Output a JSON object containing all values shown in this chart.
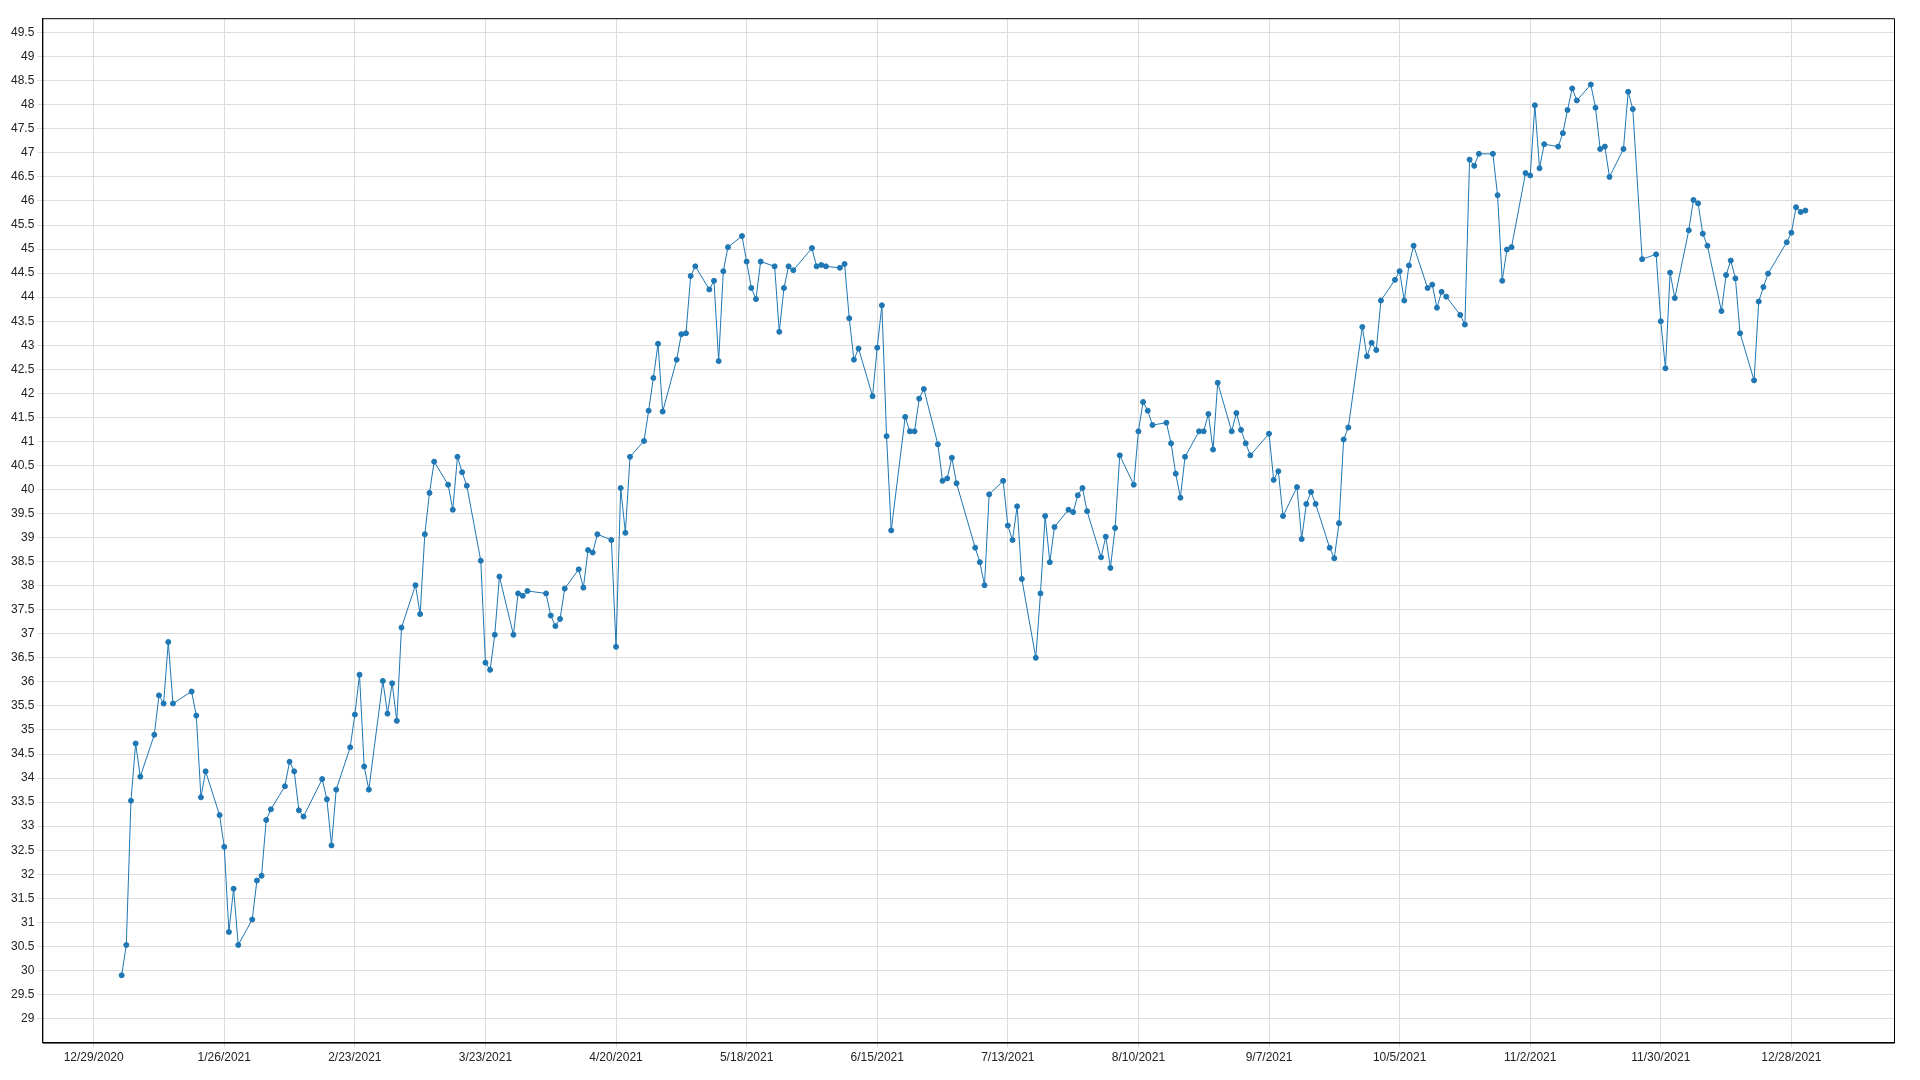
{
  "chart_data": {
    "type": "line",
    "xlim": [
      "2020-12-18",
      "2022-01-19"
    ],
    "ylim": [
      28.5,
      49.8
    ],
    "xticks": [
      {
        "value": "2020-12-29",
        "label": "12/29/2020"
      },
      {
        "value": "2021-01-26",
        "label": "1/26/2021"
      },
      {
        "value": "2021-02-23",
        "label": "2/23/2021"
      },
      {
        "value": "2021-03-23",
        "label": "3/23/2021"
      },
      {
        "value": "2021-04-20",
        "label": "4/20/2021"
      },
      {
        "value": "2021-05-18",
        "label": "5/18/2021"
      },
      {
        "value": "2021-06-15",
        "label": "6/15/2021"
      },
      {
        "value": "2021-07-13",
        "label": "7/13/2021"
      },
      {
        "value": "2021-08-10",
        "label": "8/10/2021"
      },
      {
        "value": "2021-09-07",
        "label": "9/7/2021"
      },
      {
        "value": "2021-10-05",
        "label": "10/5/2021"
      },
      {
        "value": "2021-11-02",
        "label": "11/2/2021"
      },
      {
        "value": "2021-11-30",
        "label": "11/30/2021"
      },
      {
        "value": "2021-12-28",
        "label": "12/28/2021"
      }
    ],
    "yticks": [
      29,
      29.5,
      30,
      30.5,
      31,
      31.5,
      32,
      32.5,
      33,
      33.5,
      34,
      34.5,
      35,
      35.5,
      36,
      36.5,
      37,
      37.5,
      38,
      38.5,
      39,
      39.5,
      40,
      40.5,
      41,
      41.5,
      42,
      42.5,
      43,
      43.5,
      44,
      44.5,
      45,
      45.5,
      46,
      46.5,
      47,
      47.5,
      48,
      48.5,
      49,
      49.5
    ],
    "grid": true,
    "legend": false,
    "marker": "circle",
    "line_style": "solid",
    "series": [
      {
        "color": "#1f77b4",
        "x": [
          "2021-01-04",
          "2021-01-05",
          "2021-01-06",
          "2021-01-07",
          "2021-01-08",
          "2021-01-11",
          "2021-01-12",
          "2021-01-13",
          "2021-01-14",
          "2021-01-15",
          "2021-01-19",
          "2021-01-20",
          "2021-01-21",
          "2021-01-22",
          "2021-01-25",
          "2021-01-26",
          "2021-01-27",
          "2021-01-28",
          "2021-01-29",
          "2021-02-01",
          "2021-02-02",
          "2021-02-03",
          "2021-02-04",
          "2021-02-05",
          "2021-02-08",
          "2021-02-09",
          "2021-02-10",
          "2021-02-11",
          "2021-02-12",
          "2021-02-16",
          "2021-02-17",
          "2021-02-18",
          "2021-02-19",
          "2021-02-22",
          "2021-02-23",
          "2021-02-24",
          "2021-02-25",
          "2021-02-26",
          "2021-03-01",
          "2021-03-02",
          "2021-03-03",
          "2021-03-04",
          "2021-03-05",
          "2021-03-08",
          "2021-03-09",
          "2021-03-10",
          "2021-03-11",
          "2021-03-12",
          "2021-03-15",
          "2021-03-16",
          "2021-03-17",
          "2021-03-18",
          "2021-03-19",
          "2021-03-22",
          "2021-03-23",
          "2021-03-24",
          "2021-03-25",
          "2021-03-26",
          "2021-03-29",
          "2021-03-30",
          "2021-03-31",
          "2021-04-01",
          "2021-04-05",
          "2021-04-06",
          "2021-04-07",
          "2021-04-08",
          "2021-04-09",
          "2021-04-12",
          "2021-04-13",
          "2021-04-14",
          "2021-04-15",
          "2021-04-16",
          "2021-04-19",
          "2021-04-20",
          "2021-04-21",
          "2021-04-22",
          "2021-04-23",
          "2021-04-26",
          "2021-04-27",
          "2021-04-28",
          "2021-04-29",
          "2021-04-30",
          "2021-05-03",
          "2021-05-04",
          "2021-05-05",
          "2021-05-06",
          "2021-05-07",
          "2021-05-10",
          "2021-05-11",
          "2021-05-12",
          "2021-05-13",
          "2021-05-14",
          "2021-05-17",
          "2021-05-18",
          "2021-05-19",
          "2021-05-20",
          "2021-05-21",
          "2021-05-24",
          "2021-05-25",
          "2021-05-26",
          "2021-05-27",
          "2021-05-28",
          "2021-06-01",
          "2021-06-02",
          "2021-06-03",
          "2021-06-04",
          "2021-06-07",
          "2021-06-08",
          "2021-06-09",
          "2021-06-10",
          "2021-06-11",
          "2021-06-14",
          "2021-06-15",
          "2021-06-16",
          "2021-06-17",
          "2021-06-18",
          "2021-06-21",
          "2021-06-22",
          "2021-06-23",
          "2021-06-24",
          "2021-06-25",
          "2021-06-28",
          "2021-06-29",
          "2021-06-30",
          "2021-07-01",
          "2021-07-02",
          "2021-07-06",
          "2021-07-07",
          "2021-07-08",
          "2021-07-09",
          "2021-07-12",
          "2021-07-13",
          "2021-07-14",
          "2021-07-15",
          "2021-07-16",
          "2021-07-19",
          "2021-07-20",
          "2021-07-21",
          "2021-07-22",
          "2021-07-23",
          "2021-07-26",
          "2021-07-27",
          "2021-07-28",
          "2021-07-29",
          "2021-07-30",
          "2021-08-02",
          "2021-08-03",
          "2021-08-04",
          "2021-08-05",
          "2021-08-06",
          "2021-08-09",
          "2021-08-10",
          "2021-08-11",
          "2021-08-12",
          "2021-08-13",
          "2021-08-16",
          "2021-08-17",
          "2021-08-18",
          "2021-08-19",
          "2021-08-20",
          "2021-08-23",
          "2021-08-24",
          "2021-08-25",
          "2021-08-26",
          "2021-08-27",
          "2021-08-30",
          "2021-08-31",
          "2021-09-01",
          "2021-09-02",
          "2021-09-03",
          "2021-09-07",
          "2021-09-08",
          "2021-09-09",
          "2021-09-10",
          "2021-09-13",
          "2021-09-14",
          "2021-09-15",
          "2021-09-16",
          "2021-09-17",
          "2021-09-20",
          "2021-09-21",
          "2021-09-22",
          "2021-09-23",
          "2021-09-24",
          "2021-09-27",
          "2021-09-28",
          "2021-09-29",
          "2021-09-30",
          "2021-10-01",
          "2021-10-04",
          "2021-10-05",
          "2021-10-06",
          "2021-10-07",
          "2021-10-08",
          "2021-10-11",
          "2021-10-12",
          "2021-10-13",
          "2021-10-14",
          "2021-10-15",
          "2021-10-18",
          "2021-10-19",
          "2021-10-20",
          "2021-10-21",
          "2021-10-22",
          "2021-10-25",
          "2021-10-26",
          "2021-10-27",
          "2021-10-28",
          "2021-10-29",
          "2021-11-01",
          "2021-11-02",
          "2021-11-03",
          "2021-11-04",
          "2021-11-05",
          "2021-11-08",
          "2021-11-09",
          "2021-11-10",
          "2021-11-11",
          "2021-11-12",
          "2021-11-15",
          "2021-11-16",
          "2021-11-17",
          "2021-11-18",
          "2021-11-19",
          "2021-11-22",
          "2021-11-23",
          "2021-11-24",
          "2021-11-26",
          "2021-11-29",
          "2021-11-30",
          "2021-12-01",
          "2021-12-02",
          "2021-12-03",
          "2021-12-06",
          "2021-12-07",
          "2021-12-08",
          "2021-12-09",
          "2021-12-10",
          "2021-12-13",
          "2021-12-14",
          "2021-12-15",
          "2021-12-16",
          "2021-12-17",
          "2021-12-20",
          "2021-12-21",
          "2021-12-22",
          "2021-12-23",
          "2021-12-27",
          "2021-12-28",
          "2021-12-29",
          "2021-12-30",
          "2021-12-31"
        ],
        "values": [
          29.9,
          30.53,
          33.53,
          34.72,
          34.03,
          34.9,
          35.72,
          35.55,
          36.83,
          35.55,
          35.8,
          35.3,
          33.6,
          34.14,
          33.23,
          32.57,
          30.8,
          31.7,
          30.53,
          31.06,
          31.87,
          31.97,
          33.13,
          33.35,
          33.83,
          34.34,
          34.14,
          33.33,
          33.2,
          33.98,
          33.56,
          32.6,
          33.76,
          34.64,
          35.32,
          36.15,
          34.24,
          33.76,
          36.02,
          35.34,
          35.97,
          35.19,
          37.13,
          38.01,
          37.41,
          39.07,
          39.93,
          40.58,
          40.1,
          39.58,
          40.68,
          40.36,
          40.08,
          38.52,
          36.4,
          36.25,
          36.98,
          38.19,
          36.98,
          37.84,
          37.79,
          37.89,
          37.84,
          37.38,
          37.16,
          37.31,
          37.94,
          38.34,
          37.96,
          38.74,
          38.69,
          39.07,
          38.95,
          36.73,
          40.03,
          39.1,
          40.68,
          41.01,
          41.64,
          42.32,
          43.03,
          41.62,
          42.7,
          43.23,
          43.25,
          44.44,
          44.64,
          44.16,
          44.34,
          42.67,
          44.54,
          45.04,
          45.27,
          44.74,
          44.19,
          43.96,
          44.74,
          44.64,
          43.28,
          44.19,
          44.64,
          44.56,
          45.02,
          44.64,
          44.67,
          44.64,
          44.61,
          44.69,
          43.56,
          42.7,
          42.93,
          41.94,
          42.95,
          43.83,
          41.11,
          39.15,
          41.51,
          41.21,
          41.21,
          41.89,
          42.09,
          40.94,
          40.18,
          40.23,
          40.66,
          40.13,
          38.79,
          38.49,
          38.01,
          39.9,
          40.18,
          39.25,
          38.95,
          39.65,
          38.14,
          36.5,
          37.84,
          39.45,
          38.49,
          39.22,
          39.58,
          39.53,
          39.88,
          40.03,
          39.55,
          38.59,
          39.02,
          38.37,
          39.2,
          40.71,
          40.1,
          41.21,
          41.82,
          41.64,
          41.34,
          41.39,
          40.96,
          40.33,
          39.83,
          40.68,
          41.21,
          41.21,
          41.57,
          40.83,
          42.22,
          41.21,
          41.59,
          41.24,
          40.96,
          40.71,
          41.16,
          40.2,
          40.38,
          39.45,
          40.05,
          38.97,
          39.7,
          39.95,
          39.7,
          38.79,
          38.57,
          39.3,
          41.04,
          41.29,
          43.38,
          42.77,
          43.05,
          42.9,
          43.93,
          44.36,
          44.54,
          43.93,
          44.66,
          45.07,
          44.19,
          44.26,
          43.78,
          44.11,
          44.01,
          43.63,
          43.43,
          46.86,
          46.73,
          46.98,
          46.98,
          46.12,
          44.34,
          44.99,
          45.04,
          46.58,
          46.53,
          47.99,
          46.68,
          47.18,
          47.13,
          47.41,
          47.89,
          48.34,
          48.09,
          48.42,
          47.94,
          47.08,
          47.13,
          46.5,
          47.08,
          48.27,
          47.91,
          44.79,
          44.89,
          43.5,
          42.52,
          44.51,
          43.98,
          45.39,
          46.02,
          45.95,
          45.32,
          45.07,
          43.71,
          44.46,
          44.76,
          44.39,
          43.25,
          42.27,
          43.91,
          44.21,
          44.49,
          45.14,
          45.34,
          45.87,
          45.77,
          45.8
        ]
      }
    ]
  }
}
